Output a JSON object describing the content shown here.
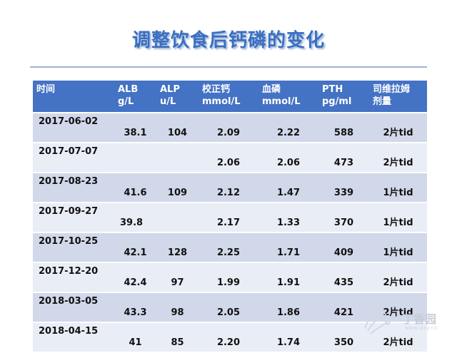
{
  "title": "调整饮食后钙磷的变化",
  "table": {
    "headers": [
      [
        "时间"
      ],
      [
        "ALB",
        "g/L"
      ],
      [
        "ALP",
        "u/L"
      ],
      [
        "校正钙",
        "mmol/L"
      ],
      [
        "血磷",
        "mmol/L"
      ],
      [
        "PTH",
        "pg/ml"
      ],
      [
        "司维拉姆",
        "剂量"
      ]
    ],
    "rows": [
      {
        "date": "2017-06-02",
        "alb": "38.1",
        "alp": "104",
        "ca": "2.09",
        "p": "2.22",
        "pth": "588",
        "dose": "2片tid"
      },
      {
        "date": "2017-07-07",
        "alb": "",
        "alp": "",
        "ca": "2.06",
        "p": "2.06",
        "pth": "473",
        "dose": "2片tid"
      },
      {
        "date": "2017-08-23",
        "alb": "41.6",
        "alp": "109",
        "ca": "2.12",
        "p": "1.47",
        "pth": "339",
        "dose": "1片tid"
      },
      {
        "date": "2017-09-27",
        "alb": "39.8",
        "alp": "",
        "ca": "2.17",
        "p": "1.33",
        "pth": "370",
        "dose": "1片tid"
      },
      {
        "date": "2017-10-25",
        "alb": "42.1",
        "alp": "128",
        "ca": "2.25",
        "p": "1.71",
        "pth": "409",
        "dose": "1片tid"
      },
      {
        "date": "2017-12-20",
        "alb": "42.4",
        "alp": "97",
        "ca": "1.99",
        "p": "1.91",
        "pth": "435",
        "dose": "2片tid"
      },
      {
        "date": "2018-03-05",
        "alb": "43.3",
        "alp": "98",
        "ca": "2.05",
        "p": "1.86",
        "pth": "421",
        "dose": "2片tid"
      },
      {
        "date": "2018-04-15",
        "alb": "41",
        "alp": "85",
        "ca": "2.20",
        "p": "1.74",
        "pth": "350",
        "dose": "2片tid"
      }
    ]
  },
  "watermark": {
    "text": "丁香园",
    "url": "www.dxy.cn"
  },
  "colors": {
    "title": "#3a6fc0",
    "header_bg": "#4472c4",
    "row_dark": "#d1d8ea",
    "row_light": "#e9edf5"
  }
}
